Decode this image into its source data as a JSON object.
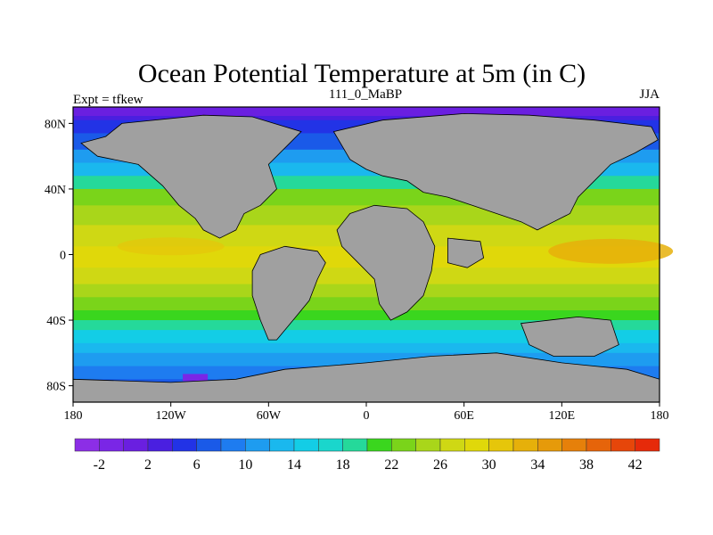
{
  "title": "Ocean Potential Temperature at 5m (in C)",
  "left_label": "Expt = tfkew",
  "center_label": "111_0_MaBP",
  "right_label": "JJA",
  "x_ticks": [
    "180",
    "120W",
    "60W",
    "0",
    "60E",
    "120E",
    "180"
  ],
  "y_ticks": [
    "80N",
    "40N",
    "0",
    "40S",
    "80S"
  ],
  "colorbar": {
    "labels": [
      "-2",
      "2",
      "6",
      "10",
      "14",
      "18",
      "22",
      "26",
      "30",
      "34",
      "38",
      "42"
    ],
    "colors": [
      "#8c2ee6",
      "#7a26e6",
      "#6a1fe0",
      "#4a1fe0",
      "#2233e6",
      "#1a5ae8",
      "#1e7cf0",
      "#1e9cf0",
      "#1ab8ee",
      "#13cde6",
      "#1ad6cc",
      "#25d99a",
      "#3ad61e",
      "#7ad41a",
      "#a9d61a",
      "#cfd814",
      "#e0d80a",
      "#e6c60a",
      "#e6b00a",
      "#e69a0a",
      "#e6800a",
      "#e6640a",
      "#e6460a",
      "#e62a0a"
    ]
  },
  "map": {
    "land_color": "#a0a0a0",
    "sst_bands": [
      {
        "lat": 90,
        "color": "#4a1fe0"
      },
      {
        "lat": 82,
        "color": "#2233e6"
      },
      {
        "lat": 74,
        "color": "#1a5ae8"
      },
      {
        "lat": 64,
        "color": "#1e9cf0"
      },
      {
        "lat": 56,
        "color": "#1ab8ee"
      },
      {
        "lat": 48,
        "color": "#25d99a"
      },
      {
        "lat": 40,
        "color": "#7ad41a"
      },
      {
        "lat": 30,
        "color": "#a9d61a"
      },
      {
        "lat": 18,
        "color": "#cfd814"
      },
      {
        "lat": 5,
        "color": "#e0d80a"
      },
      {
        "lat": -8,
        "color": "#cfd814"
      },
      {
        "lat": -18,
        "color": "#a9d61a"
      },
      {
        "lat": -26,
        "color": "#7ad41a"
      },
      {
        "lat": -34,
        "color": "#3ad61e"
      },
      {
        "lat": -40,
        "color": "#25d99a"
      },
      {
        "lat": -46,
        "color": "#13cde6"
      },
      {
        "lat": -54,
        "color": "#1ab8ee"
      },
      {
        "lat": -60,
        "color": "#1e9cf0"
      },
      {
        "lat": -68,
        "color": "#1e7cf0"
      },
      {
        "lat": -76,
        "color": "#1a5ae8"
      },
      {
        "lat": -82,
        "color": "#2233e6"
      },
      {
        "lat": -86,
        "color": "#6a1fe0"
      }
    ]
  }
}
